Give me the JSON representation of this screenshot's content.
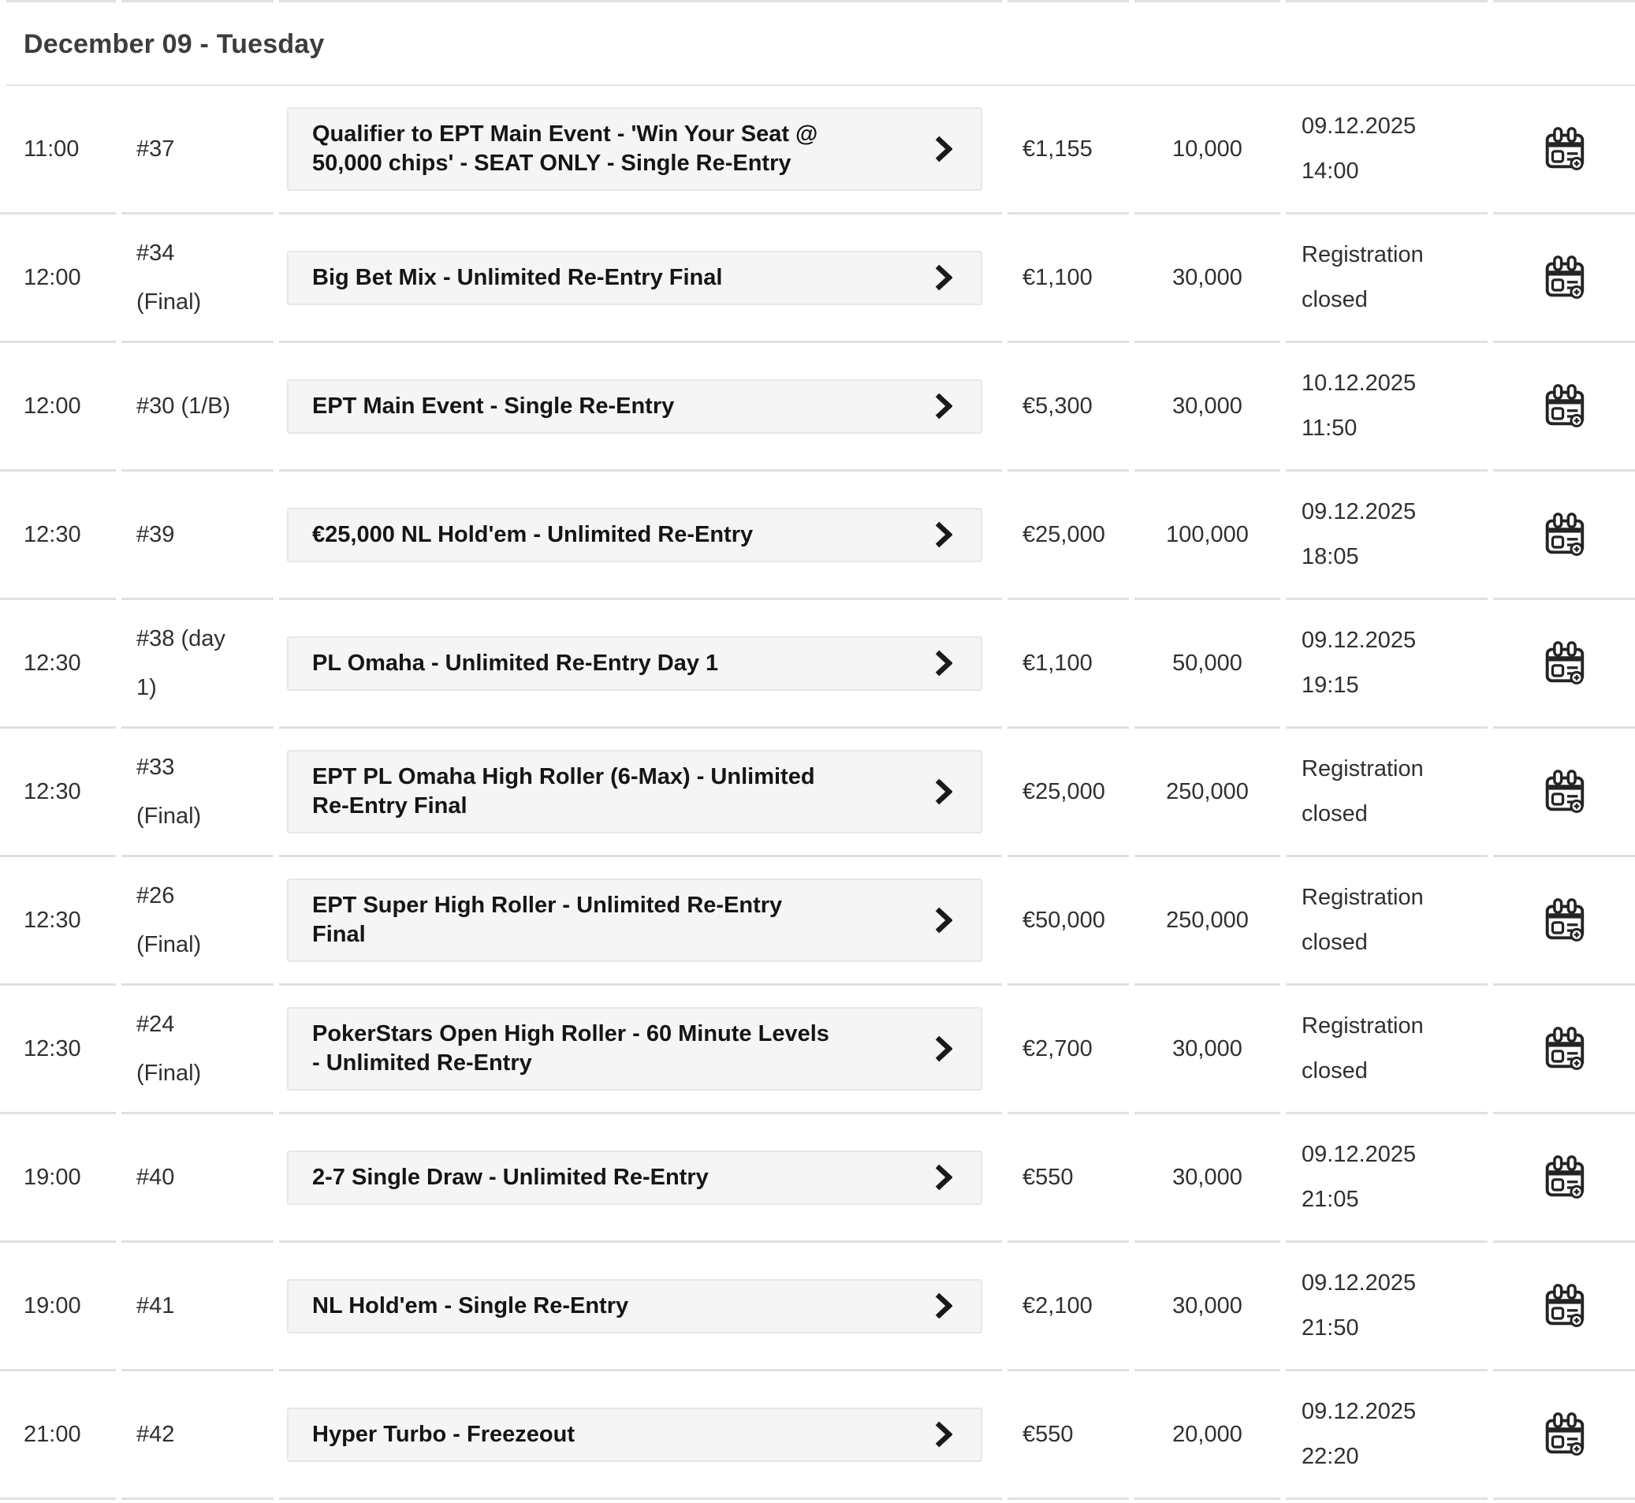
{
  "section": {
    "header": "December 09 - Tuesday"
  },
  "icons": {
    "event_open_icon": "chevron-right-icon",
    "calendar_icon": "calendar-add-icon"
  },
  "colors": {
    "row_border": "#e0e0e0",
    "header_underline": "#e3e3e3",
    "button_bg": "#f5f5f5",
    "button_border": "#e7e7e7",
    "text_primary": "#303030",
    "event_name_color": "#151515",
    "header_color": "#3d3d3d",
    "icon_color": "#242424"
  },
  "rows": [
    {
      "start_time": "11:00",
      "event_number_lines": [
        "#37"
      ],
      "event_name_lines": [
        "Qualifier to EPT Main Event - 'Win Your Seat @",
        "50,000 chips' - SEAT ONLY - Single Re-Entry"
      ],
      "buyin": "€1,155",
      "starting_chips": "10,000",
      "reg_close_lines": [
        "09.12.2025",
        "14:00"
      ]
    },
    {
      "start_time": "12:00",
      "event_number_lines": [
        "#34",
        "(Final)"
      ],
      "event_name_lines": [
        "Big Bet Mix - Unlimited Re-Entry Final"
      ],
      "buyin": "€1,100",
      "starting_chips": "30,000",
      "reg_close_lines": [
        "Registration",
        "closed"
      ]
    },
    {
      "start_time": "12:00",
      "event_number_lines": [
        "#30 (1/B)"
      ],
      "event_name_lines": [
        "EPT Main Event - Single Re-Entry"
      ],
      "buyin": "€5,300",
      "starting_chips": "30,000",
      "reg_close_lines": [
        "10.12.2025",
        "11:50"
      ]
    },
    {
      "start_time": "12:30",
      "event_number_lines": [
        "#39"
      ],
      "event_name_lines": [
        "€25,000 NL Hold'em - Unlimited Re-Entry"
      ],
      "buyin": "€25,000",
      "starting_chips": "100,000",
      "reg_close_lines": [
        "09.12.2025",
        "18:05"
      ]
    },
    {
      "start_time": "12:30",
      "event_number_lines": [
        "#38 (day",
        "1)"
      ],
      "event_name_lines": [
        "PL Omaha - Unlimited Re-Entry Day 1"
      ],
      "buyin": "€1,100",
      "starting_chips": "50,000",
      "reg_close_lines": [
        "09.12.2025",
        "19:15"
      ]
    },
    {
      "start_time": "12:30",
      "event_number_lines": [
        "#33",
        "(Final)"
      ],
      "event_name_lines": [
        "EPT PL Omaha High Roller (6-Max) - Unlimited",
        "Re-Entry Final"
      ],
      "buyin": "€25,000",
      "starting_chips": "250,000",
      "reg_close_lines": [
        "Registration",
        "closed"
      ]
    },
    {
      "start_time": "12:30",
      "event_number_lines": [
        "#26",
        "(Final)"
      ],
      "event_name_lines": [
        "EPT Super High Roller - Unlimited Re-Entry",
        "Final"
      ],
      "buyin": "€50,000",
      "starting_chips": "250,000",
      "reg_close_lines": [
        "Registration",
        "closed"
      ]
    },
    {
      "start_time": "12:30",
      "event_number_lines": [
        "#24",
        "(Final)"
      ],
      "event_name_lines": [
        "PokerStars Open High Roller - 60 Minute Levels",
        "- Unlimited Re-Entry"
      ],
      "buyin": "€2,700",
      "starting_chips": "30,000",
      "reg_close_lines": [
        "Registration",
        "closed"
      ]
    },
    {
      "start_time": "19:00",
      "event_number_lines": [
        "#40"
      ],
      "event_name_lines": [
        "2-7 Single Draw - Unlimited Re-Entry"
      ],
      "buyin": "€550",
      "starting_chips": "30,000",
      "reg_close_lines": [
        "09.12.2025",
        "21:05"
      ]
    },
    {
      "start_time": "19:00",
      "event_number_lines": [
        "#41"
      ],
      "event_name_lines": [
        "NL Hold'em - Single Re-Entry"
      ],
      "buyin": "€2,100",
      "starting_chips": "30,000",
      "reg_close_lines": [
        "09.12.2025",
        "21:50"
      ]
    },
    {
      "start_time": "21:00",
      "event_number_lines": [
        "#42"
      ],
      "event_name_lines": [
        "Hyper Turbo - Freezeout"
      ],
      "buyin": "€550",
      "starting_chips": "20,000",
      "reg_close_lines": [
        "09.12.2025",
        "22:20"
      ]
    }
  ]
}
